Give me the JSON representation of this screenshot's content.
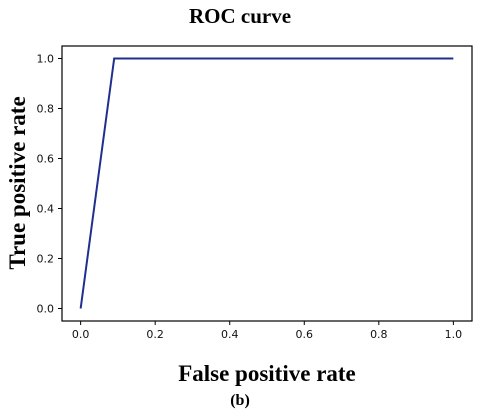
{
  "chart_data": {
    "type": "line",
    "title": "ROC curve",
    "xlabel": "False positive rate",
    "ylabel": "True positive rate",
    "caption": "(b)",
    "xlim": [
      -0.05,
      1.05
    ],
    "ylim": [
      -0.05,
      1.05
    ],
    "xticks": [
      "0.0",
      "0.2",
      "0.4",
      "0.6",
      "0.8",
      "1.0"
    ],
    "yticks": [
      "0.0",
      "0.2",
      "0.4",
      "0.6",
      "0.8",
      "1.0"
    ],
    "grid": false,
    "series": [
      {
        "x": [
          0.0,
          0.09,
          1.0
        ],
        "y": [
          0.0,
          1.0,
          1.0
        ],
        "color": "#1f2f8f"
      }
    ]
  }
}
